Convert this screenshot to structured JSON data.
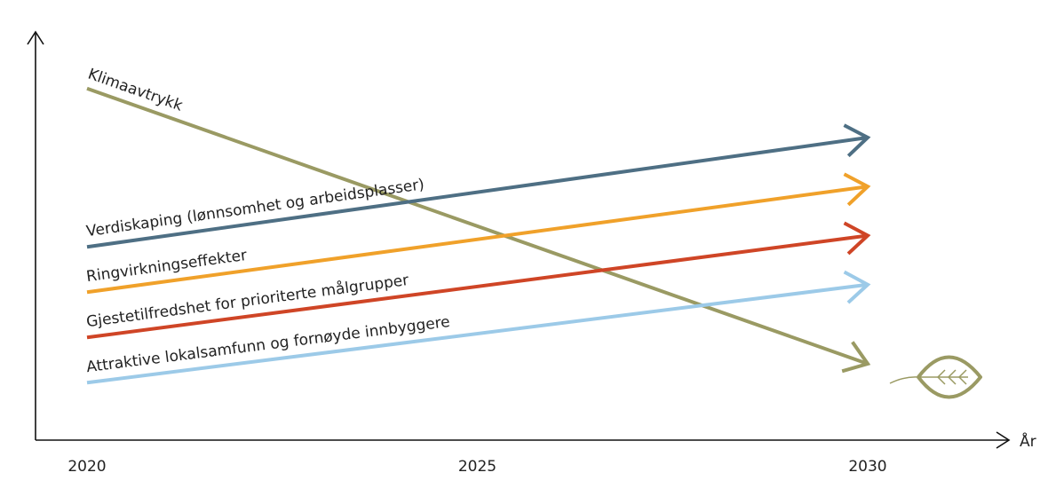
{
  "chart_data": {
    "type": "line",
    "title": "",
    "xlabel": "År",
    "ylabel": "",
    "xlim": [
      2020,
      2031
    ],
    "ylim": [
      0,
      10
    ],
    "x_ticks": [
      "2020",
      "2025",
      "2030"
    ],
    "legend": "none",
    "grid": false,
    "series": [
      {
        "name": "Klimaavtrykk",
        "color": "#9a9a63",
        "x": [
          2020,
          2030
        ],
        "y": [
          8.9,
          1.6
        ]
      },
      {
        "name": "Verdiskaping (lønnsomhet og arbeidsplasser)",
        "color": "#4e6f84",
        "x": [
          2020,
          2030
        ],
        "y": [
          4.7,
          7.6
        ]
      },
      {
        "name": "Ringvirkningseffekter",
        "color": "#f0a12a",
        "x": [
          2020,
          2030
        ],
        "y": [
          3.5,
          6.3
        ]
      },
      {
        "name": "Gjestetilfredshet for prioriterte målgrupper",
        "color": "#cf4526",
        "x": [
          2020,
          2030
        ],
        "y": [
          2.3,
          5.0
        ]
      },
      {
        "name": "Attraktive lokalsamfunn og fornøyde innbyggere",
        "color": "#9ccae8",
        "x": [
          2020,
          2030
        ],
        "y": [
          1.1,
          3.7
        ]
      }
    ],
    "icon": {
      "name": "leaf-icon",
      "color": "#9a9a63"
    }
  }
}
